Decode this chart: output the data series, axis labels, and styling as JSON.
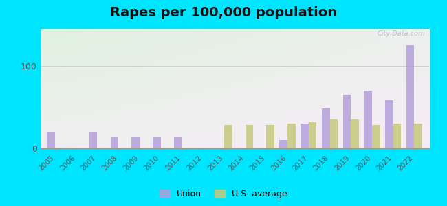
{
  "title": "Rapes per 100,000 population",
  "years": [
    2005,
    2006,
    2007,
    2008,
    2009,
    2010,
    2011,
    2012,
    2013,
    2014,
    2015,
    2016,
    2017,
    2018,
    2019,
    2020,
    2021,
    2022
  ],
  "union": [
    20,
    0,
    20,
    13,
    13,
    13,
    13,
    0,
    0,
    0,
    0,
    10,
    30,
    48,
    65,
    70,
    58,
    125
  ],
  "us_avg": [
    0,
    0,
    0,
    0,
    0,
    0,
    0,
    0,
    28,
    28,
    28,
    30,
    32,
    35,
    35,
    28,
    30,
    30
  ],
  "union_color": "#b39ddb",
  "us_avg_color": "#c5c97a",
  "background_outer": "#00e5ff",
  "grid_color": "#cccccc",
  "title_fontsize": 14,
  "yticks": [
    0,
    100
  ],
  "ylim": [
    0,
    145
  ],
  "bar_width": 0.38,
  "legend_union": "Union",
  "legend_us": "U.S. average",
  "watermark": "City-Data.com"
}
